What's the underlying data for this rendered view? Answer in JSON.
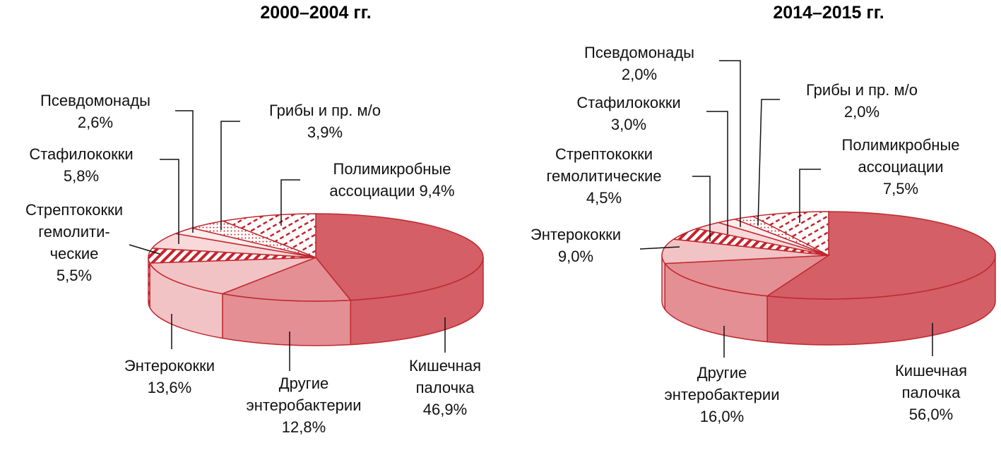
{
  "chart_data": [
    {
      "type": "pie",
      "title": "2000–2004 гг.",
      "categories": [
        "Кишечная\nпалочка",
        "Другие\nэнтеробактерии",
        "Энтерококки",
        "Стрептококки\nгемолити-\nческие",
        "Стафилококки",
        "Псевдомонады",
        "Грибы и пр. м/о",
        "Полимикробные\nассоциации"
      ],
      "values": [
        46.9,
        12.8,
        13.6,
        5.5,
        5.8,
        2.6,
        3.9,
        9.4
      ],
      "value_labels": [
        "46,9%",
        "12,8%",
        "13,6%",
        "5,5%",
        "5,8%",
        "2,6%",
        "3,9%",
        "9,4%"
      ],
      "colors": [
        "#d45f66",
        "#e38f93",
        "#f2c3c5",
        "#c8222b",
        "#f8d8d9",
        "#fcecec",
        "#c8222b",
        "#c8222b"
      ],
      "patterns": [
        "solid",
        "solid",
        "solid",
        "hatch",
        "solid",
        "solid",
        "dots",
        "dashes"
      ]
    },
    {
      "type": "pie",
      "title": "2014–2015 гг.",
      "categories": [
        "Кишечная\nпалочка",
        "Другие\nэнтеробактерии",
        "Энтерококки",
        "Стрептококки\nгемолитические",
        "Стафилококки",
        "Псевдомонады",
        "Грибы и пр. м/о",
        "Полимикробные\nассоциации"
      ],
      "values": [
        56.0,
        16.0,
        9.0,
        4.5,
        3.0,
        2.0,
        2.0,
        7.5
      ],
      "value_labels": [
        "56,0%",
        "16,0%",
        "9,0%",
        "4,5%",
        "3,0%",
        "2,0%",
        "2,0%",
        "7,5%"
      ],
      "colors": [
        "#d45f66",
        "#e38f93",
        "#f2c3c5",
        "#c8222b",
        "#f8d8d9",
        "#fcecec",
        "#c8222b",
        "#c8222b"
      ],
      "patterns": [
        "solid",
        "solid",
        "solid",
        "hatch",
        "solid",
        "solid",
        "dots",
        "dashes"
      ]
    }
  ]
}
